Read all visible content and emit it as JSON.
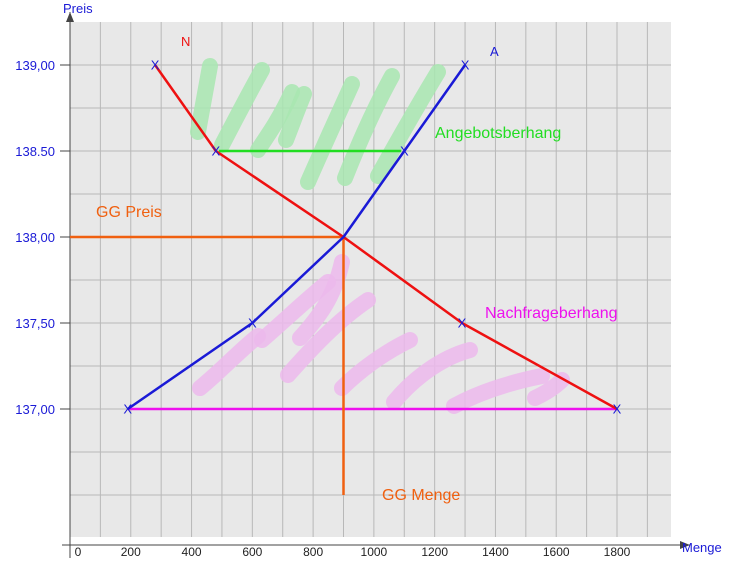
{
  "chart_data": {
    "type": "line",
    "xlabel": "Menge",
    "ylabel": "Preis",
    "xlim": [
      0,
      1800
    ],
    "ylim": [
      136.5,
      139.25
    ],
    "x_ticks": [
      {
        "value": 0,
        "label": "0"
      },
      {
        "value": 200,
        "label": "200"
      },
      {
        "value": 400,
        "label": "400"
      },
      {
        "value": 600,
        "label": "600"
      },
      {
        "value": 800,
        "label": "800"
      },
      {
        "value": 1000,
        "label": "1000"
      },
      {
        "value": 1200,
        "label": "1200"
      },
      {
        "value": 1400,
        "label": "1400"
      },
      {
        "value": 1600,
        "label": "1600"
      },
      {
        "value": 1800,
        "label": "1800"
      }
    ],
    "y_ticks": [
      {
        "value": 137.0,
        "label": "137,00"
      },
      {
        "value": 137.5,
        "label": "137,50"
      },
      {
        "value": 138.0,
        "label": "138,00"
      },
      {
        "value": 138.5,
        "label": "138.50"
      },
      {
        "value": 139.0,
        "label": "139,00"
      }
    ],
    "grid": true,
    "series": [
      {
        "name": "N",
        "color": "#ee1111",
        "points": [
          [
            280,
            139.0
          ],
          [
            480,
            138.5
          ],
          [
            900,
            138.0
          ],
          [
            1290,
            137.5
          ],
          [
            1800,
            137.0
          ]
        ]
      },
      {
        "name": "A",
        "color": "#1a1ad6",
        "points": [
          [
            190,
            137.0
          ],
          [
            600,
            137.5
          ],
          [
            900,
            138.0
          ],
          [
            1100,
            138.5
          ],
          [
            1300,
            139.0
          ]
        ]
      }
    ],
    "markers": [
      {
        "x": 280,
        "y": 139.0
      },
      {
        "x": 480,
        "y": 138.5
      },
      {
        "x": 1290,
        "y": 137.5
      },
      {
        "x": 1800,
        "y": 137.0
      },
      {
        "x": 190,
        "y": 137.0
      },
      {
        "x": 600,
        "y": 137.5
      },
      {
        "x": 1100,
        "y": 138.5
      },
      {
        "x": 1300,
        "y": 139.0
      }
    ],
    "horizontal_segments": [
      {
        "y": 138.5,
        "x_from": 490,
        "x_to": 1090,
        "color": "#22dd22"
      },
      {
        "y": 137.0,
        "x_from": 190,
        "x_to": 1800,
        "color": "#ee11ee"
      },
      {
        "y": 138.0,
        "x_from": -20,
        "x_to": 900,
        "color": "#f06010"
      }
    ],
    "vertical_segments": [
      {
        "x": 900,
        "y_from": 138.0,
        "y_to": 136.5,
        "color": "#f06010"
      }
    ],
    "annotations": [
      {
        "text": "Angebotsberhang",
        "color": "#22dd22"
      },
      {
        "text": "Nachfrageberhang",
        "color": "#ee11ee"
      },
      {
        "text": "GG Preis",
        "color": "#f06010"
      },
      {
        "text": "GG Menge",
        "color": "#f06010"
      }
    ],
    "hatch_colors": {
      "supply_excess": "#a8e6b0",
      "demand_excess": "#ecb8ec"
    }
  }
}
